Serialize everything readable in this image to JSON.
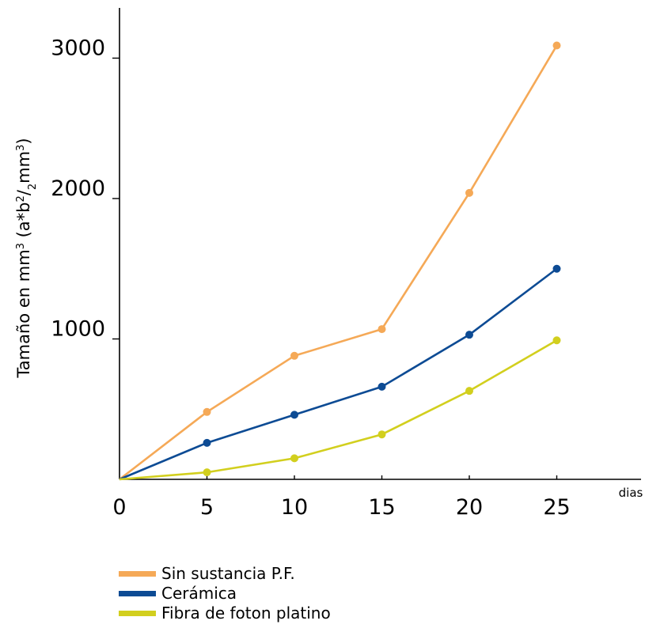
{
  "chart_data": {
    "type": "line",
    "title": "",
    "xlabel": "dias",
    "ylabel": {
      "parts": [
        {
          "text": "Tamaño en mm",
          "shift": null
        },
        {
          "text": "3",
          "shift": "super"
        },
        {
          "text": " (a*b",
          "shift": null
        },
        {
          "text": "2",
          "shift": "super"
        },
        {
          "text": "/",
          "shift": null
        },
        {
          "text": "2",
          "shift": "sub"
        },
        {
          "text": "mm",
          "shift": null
        },
        {
          "text": "3",
          "shift": "super"
        },
        {
          "text": ")",
          "shift": null
        }
      ]
    },
    "x": [
      0,
      5,
      10,
      15,
      20,
      25
    ],
    "xticks": [
      "0",
      "5",
      "10",
      "15",
      "20",
      "25"
    ],
    "yticks": [
      {
        "value": 1000,
        "label": "1000"
      },
      {
        "value": 2000,
        "label": "2000"
      },
      {
        "value": 3000,
        "label": "3000"
      }
    ],
    "xlim": [
      0,
      30
    ],
    "ylim": [
      0,
      3300
    ],
    "grid": false,
    "legend_position": "bottom-left",
    "series": [
      {
        "name": "Sin sustancia P.F.",
        "color": "#f5a957",
        "values": [
          0,
          480,
          880,
          1070,
          2040,
          3090
        ]
      },
      {
        "name": "Cerámica",
        "color": "#0d4b94",
        "values": [
          0,
          260,
          460,
          660,
          1030,
          1500
        ]
      },
      {
        "name": "Fibra de foton platino",
        "color": "#d2cf1e",
        "values": [
          0,
          50,
          150,
          320,
          630,
          990
        ]
      }
    ]
  }
}
